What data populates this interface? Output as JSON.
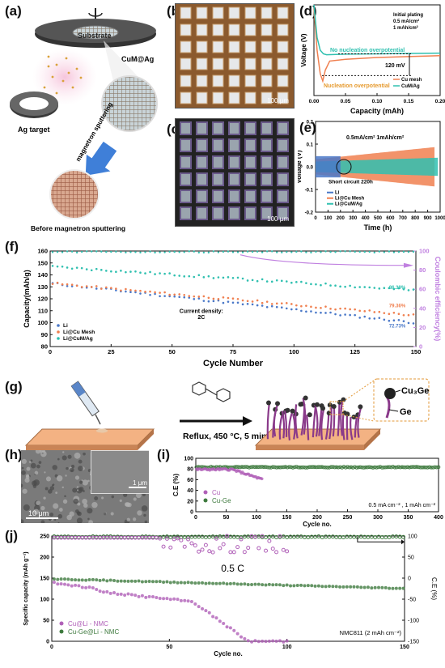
{
  "panels": {
    "a": "(a)",
    "b": "(b)",
    "c": "(c)",
    "d": "(d)",
    "e": "(e)",
    "f": "(f)",
    "g": "(g)",
    "h": "(h)",
    "i": "(i)",
    "j": "(j)"
  },
  "panel_a": {
    "substrate": "Substrate",
    "product": "CuM@Ag",
    "target": "Ag target",
    "process": "magnetron sputtering",
    "before": "Before magnetron sputtering"
  },
  "panel_b": {
    "scale": "100 μm"
  },
  "panel_c": {
    "scale": "100 μm"
  },
  "panel_g": {
    "reaction": "Reflux, 450 °C, 5 min",
    "phase1": "Cu₃Ge",
    "phase2": "Ge"
  },
  "panel_h": {
    "scale_main": "10 μm",
    "scale_inset": "1 μm"
  },
  "colors": {
    "li": "#4a78c8",
    "cumesh": "#f08050",
    "cumag": "#30c0b0",
    "ce": "#c080e0",
    "cu": "#b060b8",
    "cuge": "#3e7a3e"
  },
  "chart_data": [
    {
      "id": "d",
      "type": "line",
      "xlabel": "Capacity (mAh)",
      "ylabel": "Voltage (V)",
      "xlim": [
        0.0,
        0.2
      ],
      "ylim": [
        -0.3,
        0.2
      ],
      "xticks": [
        "0.00",
        "0.05",
        "0.10",
        "0.15",
        "0.20"
      ],
      "annotations": {
        "conditions1": "Initial plating",
        "conditions2": "0.5 mA/cm²",
        "conditions3": "1   mAh/cm²",
        "no_nuc": "No nucleation overpotential",
        "nuc": "Nucleation overpotential",
        "mv": "120 mV"
      },
      "legend": "bottom-right",
      "series": [
        {
          "name": "Cu mesh",
          "x": [
            0.0,
            0.005,
            0.01,
            0.014,
            0.018,
            0.025,
            0.05,
            0.1,
            0.15,
            0.2
          ],
          "y": [
            0.18,
            -0.05,
            -0.18,
            -0.22,
            -0.16,
            -0.11,
            -0.1,
            -0.09,
            -0.085,
            -0.08
          ]
        },
        {
          "name": "CuM/Ag",
          "x": [
            0.0,
            0.005,
            0.01,
            0.015,
            0.02,
            0.05,
            0.1,
            0.15,
            0.2
          ],
          "y": [
            0.2,
            0.02,
            -0.05,
            -0.07,
            -0.075,
            -0.072,
            -0.07,
            -0.068,
            -0.066
          ]
        }
      ]
    },
    {
      "id": "e",
      "type": "line",
      "title": "0.5mA/cm² 1mAh/cm²",
      "xlabel": "Time (h)",
      "ylabel": "Voltage (V)",
      "xlim": [
        0,
        1100
      ],
      "ylim": [
        -0.3,
        0.3
      ],
      "xticks": [
        "0",
        "100",
        "200",
        "300",
        "400",
        "500",
        "600",
        "700",
        "800",
        "900",
        "1000"
      ],
      "yticks": [
        "-0.2",
        "-0.1",
        "0.0",
        "0.1",
        "0.2"
      ],
      "annotations": {
        "short": "Short circuit 220h"
      },
      "legend": "bottom-left",
      "series": [
        {
          "name": "Li",
          "end": 220,
          "amp": 0.07
        },
        {
          "name": "Li@Cu Mesh",
          "end": 1050,
          "amp_start": 0.05,
          "amp_end": 0.13
        },
        {
          "name": "Li@CuM/Ag",
          "end": 1080,
          "amp_start": 0.035,
          "amp_end": 0.06
        }
      ]
    },
    {
      "id": "f",
      "type": "scatter",
      "xlabel": "Cycle Number",
      "ylabel": "Capacity(mAh/g)",
      "y2label": "Coulombic efficiency(%)",
      "xlim": [
        0,
        150
      ],
      "ylim": [
        80,
        160
      ],
      "y2lim": [
        0,
        100
      ],
      "xticks": [
        "0",
        "25",
        "50",
        "75",
        "100",
        "125",
        "150"
      ],
      "yticks": [
        "80",
        "90",
        "100",
        "110",
        "120",
        "130",
        "140",
        "150",
        "160"
      ],
      "y2ticks": [
        "0",
        "20",
        "40",
        "60",
        "80",
        "100"
      ],
      "annotations": {
        "density": "Current density:",
        "rate": "2C",
        "p1": "86.39%",
        "p2": "79.36%",
        "p3": "72.73%"
      },
      "legend": "bottom-left",
      "series": [
        {
          "name": "Li",
          "start": 133,
          "end": 100
        },
        {
          "name": "Li@Cu Mesh",
          "start": 133,
          "end": 106
        },
        {
          "name": "Li@CuM/Ag",
          "start": 147,
          "end": 127
        },
        {
          "name": "CE",
          "value": 99
        }
      ]
    },
    {
      "id": "i",
      "type": "scatter",
      "xlabel": "Cycle no.",
      "ylabel": "C.E (%)",
      "xlim": [
        0,
        400
      ],
      "ylim": [
        0,
        120
      ],
      "xticks": [
        "0",
        "50",
        "100",
        "150",
        "200",
        "250",
        "300",
        "350",
        "400"
      ],
      "yticks": [
        "0",
        "20",
        "40",
        "60",
        "80",
        "100"
      ],
      "annotations": {
        "cond": "0.5 mA cm⁻² , 1 mAh cm⁻²"
      },
      "legend": "bottom-left",
      "series": [
        {
          "name": "Cu",
          "end": 110,
          "value": 95,
          "drop_to": 72
        },
        {
          "name": "Cu-Ge",
          "end": 400,
          "value": 100
        }
      ]
    },
    {
      "id": "j",
      "type": "scatter",
      "xlabel": "Cycle no.",
      "ylabel": "Specific capacity (mAh g⁻¹)",
      "y2label": "C.E (%)",
      "xlim": [
        0,
        150
      ],
      "ylim": [
        0,
        250
      ],
      "y2lim": [
        -150,
        100
      ],
      "xticks": [
        "0",
        "50",
        "100",
        "150"
      ],
      "yticks": [
        "0",
        "50",
        "100",
        "150",
        "200",
        "250"
      ],
      "y2ticks": [
        "-150",
        "-100",
        "-50",
        "0",
        "50",
        "100"
      ],
      "annotations": {
        "rate": "0.5 C",
        "cell": "NMC811 (2 mAh cm⁻²)"
      },
      "legend": "bottom-left",
      "series": [
        {
          "name": "Cu@Li - NMC"
        },
        {
          "name": "Cu-Ge@Li - NMC"
        }
      ]
    }
  ]
}
